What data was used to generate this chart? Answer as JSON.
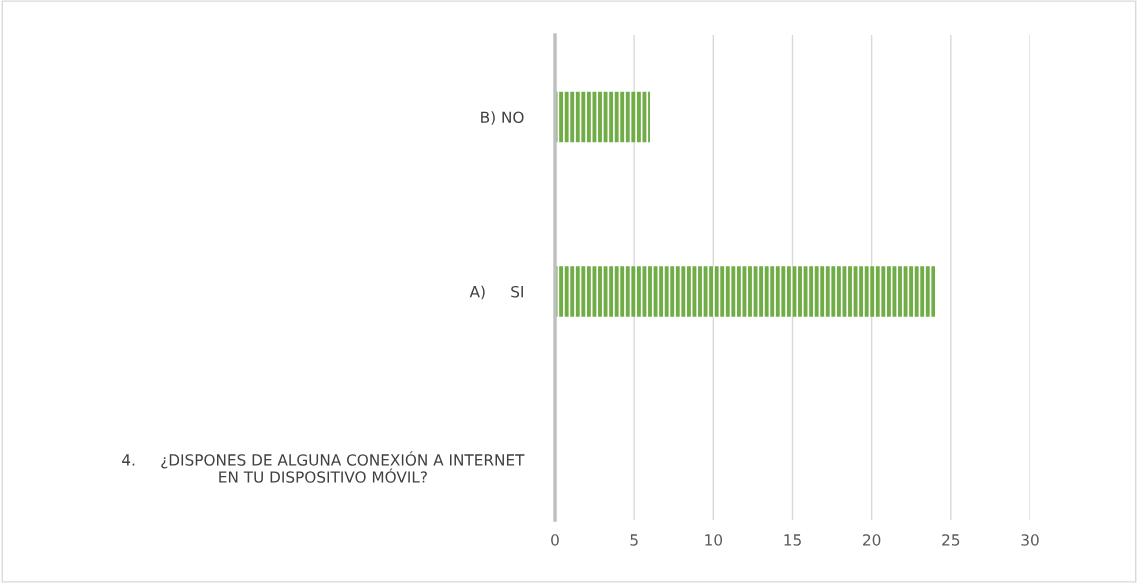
{
  "chart_data": {
    "type": "bar",
    "orientation": "horizontal",
    "categories": [
      "B) NO",
      "A)     SI",
      "4.     ¿DISPONES DE ALGUNA CONEXIÓN A INTERNET\nEN TU DISPOSITIVO MÓVIL?"
    ],
    "values": [
      6,
      24,
      null
    ],
    "color": "#70ad47",
    "xlim": [
      0,
      30
    ],
    "xticks": [
      0,
      5,
      10,
      15,
      20,
      25,
      30
    ],
    "grid": "x",
    "legend": false
  }
}
